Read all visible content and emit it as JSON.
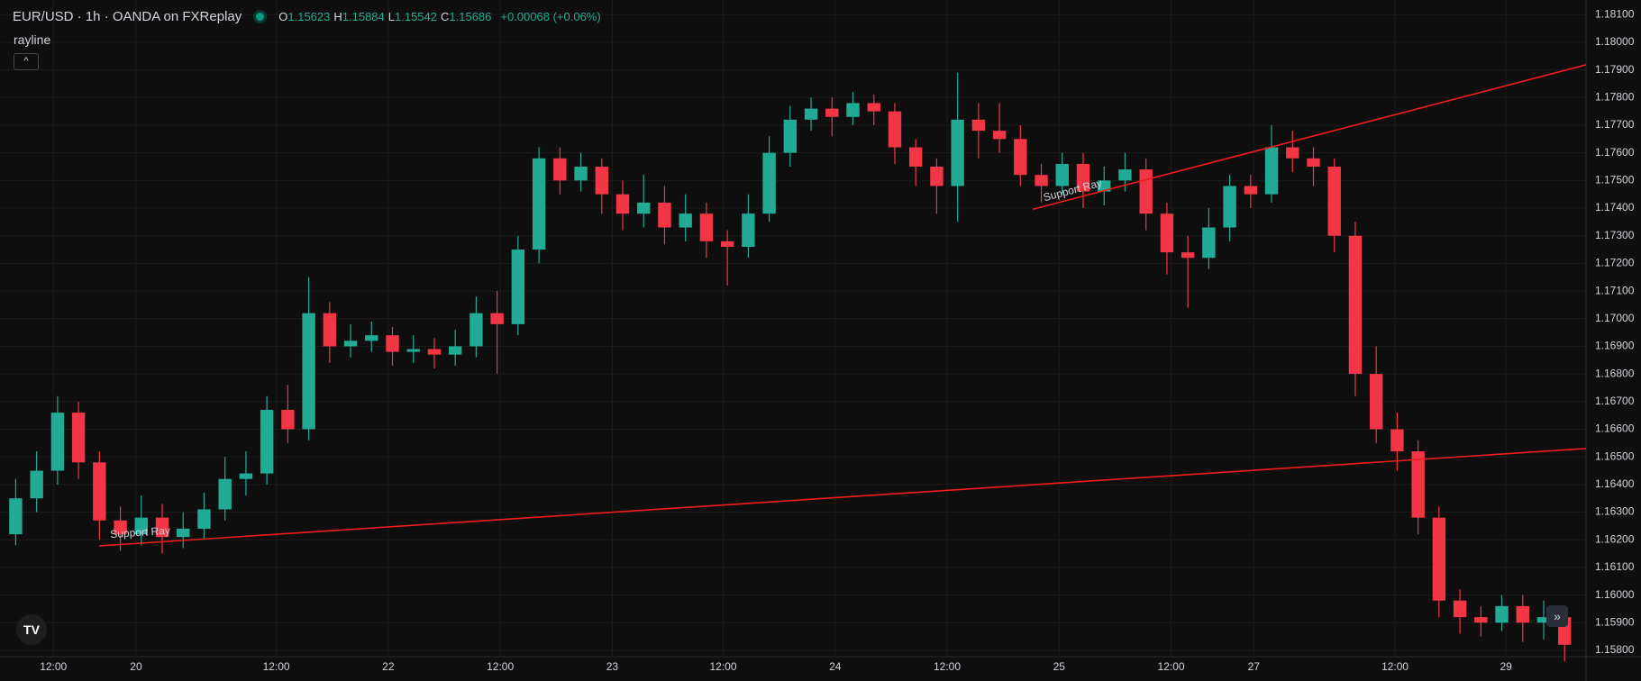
{
  "header": {
    "title": "EUR/USD · 1h · OANDA on FXReplay",
    "ohlc": [
      {
        "key": "O",
        "value": "1.15623"
      },
      {
        "key": "H",
        "value": "1.15884"
      },
      {
        "key": "L",
        "value": "1.15542"
      },
      {
        "key": "C",
        "value": "1.15686"
      }
    ],
    "change": "+0.00068 (+0.06%)",
    "indicator": "rayline"
  },
  "chart_data": {
    "type": "candlestick",
    "open": [
      1.1622,
      1.1635,
      1.1645,
      1.1666,
      1.1648,
      1.1627,
      1.1622,
      1.1628,
      1.1621,
      1.1624,
      1.1631,
      1.1642,
      1.1644,
      1.1667,
      1.166,
      1.1702,
      1.169,
      1.1692,
      1.1694,
      1.1688,
      1.1689,
      1.1687,
      1.169,
      1.1702,
      1.1698,
      1.1725,
      1.1758,
      1.175,
      1.1755,
      1.1745,
      1.1738,
      1.1742,
      1.1733,
      1.1738,
      1.1728,
      1.1726,
      1.1738,
      1.176,
      1.1772,
      1.1776,
      1.1773,
      1.1778,
      1.1775,
      1.1762,
      1.1755,
      1.1748,
      1.1772,
      1.1768,
      1.1765,
      1.1752,
      1.1748,
      1.1756,
      1.1746,
      1.175,
      1.1754,
      1.1738,
      1.1724,
      1.1722,
      1.1733,
      1.1748,
      1.1745,
      1.1762,
      1.1758,
      1.1755,
      1.173,
      1.168,
      1.166,
      1.1652,
      1.1628,
      1.1598,
      1.1592,
      1.159,
      1.1596,
      1.159,
      1.1592
    ],
    "high": [
      1.1642,
      1.1652,
      1.1672,
      1.167,
      1.1652,
      1.1632,
      1.1636,
      1.1633,
      1.163,
      1.1637,
      1.165,
      1.1652,
      1.1672,
      1.1676,
      1.1715,
      1.1706,
      1.1698,
      1.1699,
      1.1697,
      1.1694,
      1.1693,
      1.1696,
      1.1708,
      1.171,
      1.173,
      1.1762,
      1.1762,
      1.176,
      1.1758,
      1.175,
      1.1752,
      1.1748,
      1.1745,
      1.1742,
      1.1732,
      1.1745,
      1.1766,
      1.1777,
      1.178,
      1.178,
      1.1782,
      1.1781,
      1.1778,
      1.1765,
      1.1758,
      1.1789,
      1.1778,
      1.1778,
      1.177,
      1.1756,
      1.176,
      1.176,
      1.1755,
      1.176,
      1.1758,
      1.1742,
      1.173,
      1.174,
      1.1752,
      1.1752,
      1.177,
      1.1768,
      1.1762,
      1.1758,
      1.1735,
      1.169,
      1.1666,
      1.1656,
      1.1632,
      1.1602,
      1.1596,
      1.16,
      1.16,
      1.1598,
      1.1595
    ],
    "low": [
      1.1618,
      1.163,
      1.164,
      1.1642,
      1.162,
      1.1616,
      1.1618,
      1.1615,
      1.1617,
      1.162,
      1.1627,
      1.1636,
      1.164,
      1.1655,
      1.1656,
      1.1684,
      1.1686,
      1.1688,
      1.1683,
      1.1684,
      1.1682,
      1.1683,
      1.1686,
      1.168,
      1.1694,
      1.172,
      1.1745,
      1.1746,
      1.1738,
      1.1732,
      1.1733,
      1.1727,
      1.1728,
      1.1722,
      1.1712,
      1.1722,
      1.1735,
      1.1755,
      1.1768,
      1.1766,
      1.177,
      1.177,
      1.1756,
      1.1748,
      1.1738,
      1.1735,
      1.1758,
      1.176,
      1.1748,
      1.1742,
      1.1745,
      1.174,
      1.1741,
      1.1746,
      1.1732,
      1.1716,
      1.1704,
      1.1718,
      1.1728,
      1.174,
      1.1742,
      1.1753,
      1.1748,
      1.1724,
      1.1672,
      1.1655,
      1.1645,
      1.1622,
      1.1592,
      1.1586,
      1.1585,
      1.1587,
      1.1583,
      1.1584,
      1.1576
    ],
    "close": [
      1.1635,
      1.1645,
      1.1666,
      1.1648,
      1.1627,
      1.1622,
      1.1628,
      1.1621,
      1.1624,
      1.1631,
      1.1642,
      1.1644,
      1.1667,
      1.166,
      1.1702,
      1.169,
      1.1692,
      1.1694,
      1.1688,
      1.1689,
      1.1687,
      1.169,
      1.1702,
      1.1698,
      1.1725,
      1.1758,
      1.175,
      1.1755,
      1.1745,
      1.1738,
      1.1742,
      1.1733,
      1.1738,
      1.1728,
      1.1726,
      1.1738,
      1.176,
      1.1772,
      1.1776,
      1.1773,
      1.1778,
      1.1775,
      1.1762,
      1.1755,
      1.1748,
      1.1772,
      1.1768,
      1.1765,
      1.1752,
      1.1748,
      1.1756,
      1.1746,
      1.175,
      1.1754,
      1.1738,
      1.1724,
      1.1722,
      1.1733,
      1.1748,
      1.1745,
      1.1762,
      1.1758,
      1.1755,
      1.173,
      1.168,
      1.166,
      1.1652,
      1.1628,
      1.1598,
      1.1592,
      1.159,
      1.1596,
      1.159,
      1.1592,
      1.1582
    ],
    "up_color": "#22ab94",
    "down_color": "#f23645",
    "ylim": [
      1.15777,
      1.18153
    ],
    "yticks": [
      {
        "value": 1.158,
        "label": "1.15800"
      },
      {
        "value": 1.159,
        "label": "1.15900"
      },
      {
        "value": 1.16,
        "label": "1.16000"
      },
      {
        "value": 1.161,
        "label": "1.16100"
      },
      {
        "value": 1.162,
        "label": "1.16200"
      },
      {
        "value": 1.163,
        "label": "1.16300"
      },
      {
        "value": 1.164,
        "label": "1.16400"
      },
      {
        "value": 1.165,
        "label": "1.16500"
      },
      {
        "value": 1.166,
        "label": "1.16600"
      },
      {
        "value": 1.167,
        "label": "1.16700"
      },
      {
        "value": 1.168,
        "label": "1.16800"
      },
      {
        "value": 1.169,
        "label": "1.16900"
      },
      {
        "value": 1.17,
        "label": "1.17000"
      },
      {
        "value": 1.171,
        "label": "1.17100"
      },
      {
        "value": 1.172,
        "label": "1.17200"
      },
      {
        "value": 1.173,
        "label": "1.17300"
      },
      {
        "value": 1.174,
        "label": "1.17400"
      },
      {
        "value": 1.175,
        "label": "1.17500"
      },
      {
        "value": 1.176,
        "label": "1.17600"
      },
      {
        "value": 1.177,
        "label": "1.17700"
      },
      {
        "value": 1.178,
        "label": "1.17800"
      },
      {
        "value": 1.179,
        "label": "1.17900"
      },
      {
        "value": 1.18,
        "label": "1.18000"
      },
      {
        "value": 1.181,
        "label": "1.18100"
      }
    ],
    "xticks": [
      {
        "value": 1.8,
        "label": "12:00"
      },
      {
        "value": 5.75,
        "label": "20"
      },
      {
        "value": 12.45,
        "label": "12:00"
      },
      {
        "value": 17.8,
        "label": "22"
      },
      {
        "value": 23.15,
        "label": "12:00"
      },
      {
        "value": 28.5,
        "label": "23"
      },
      {
        "value": 33.8,
        "label": "12:00"
      },
      {
        "value": 39.15,
        "label": "24"
      },
      {
        "value": 44.5,
        "label": "12:00"
      },
      {
        "value": 49.85,
        "label": "25"
      },
      {
        "value": 55.2,
        "label": "12:00"
      },
      {
        "value": 59.15,
        "label": "27"
      },
      {
        "value": 65.9,
        "label": "12:00"
      },
      {
        "value": 71.2,
        "label": "29"
      }
    ],
    "grid": true,
    "rays": [
      {
        "label": "Support Ray",
        "color": "#f21c1c",
        "start": [
          4,
          1.16178
        ],
        "end": [
          75,
          1.1653
        ]
      },
      {
        "label": "Support Ray",
        "color": "#f21c1c",
        "start": [
          48.6,
          1.17396
        ],
        "end": [
          75,
          1.17918
        ]
      }
    ]
  }
}
